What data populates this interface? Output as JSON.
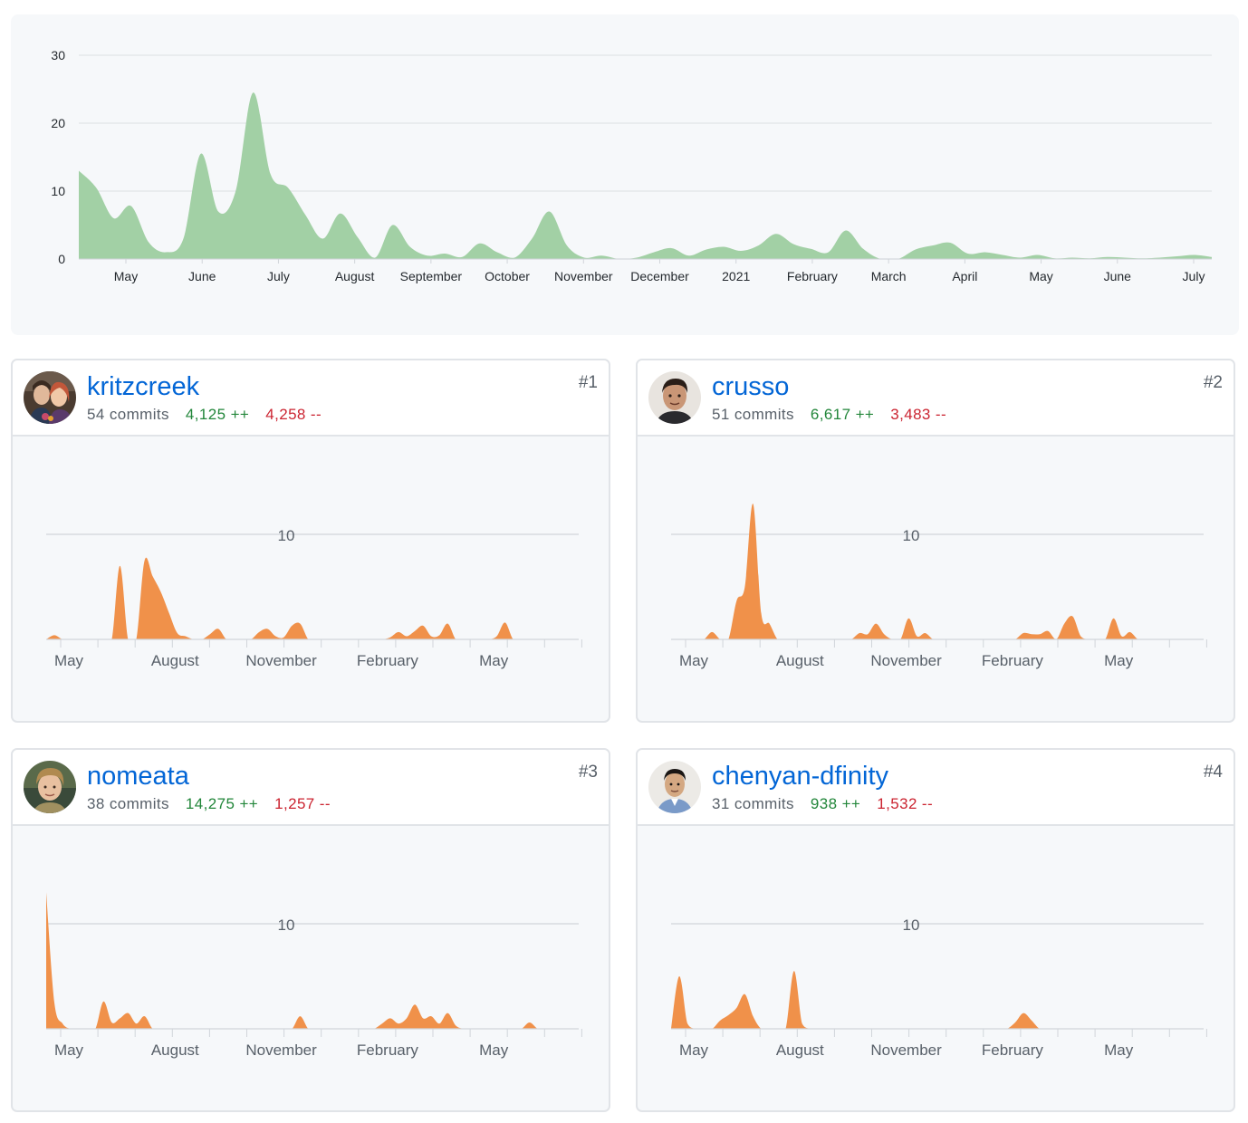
{
  "chart_data": [
    {
      "id": "overall",
      "type": "area",
      "color": "#a2d0a5",
      "y_ticks": [
        "0",
        "10",
        "20",
        "30"
      ],
      "ylim": [
        0,
        30
      ],
      "x_tick_labels": [
        "May",
        "June",
        "July",
        "August",
        "September",
        "October",
        "November",
        "December",
        "2021",
        "February",
        "March",
        "April",
        "May",
        "June",
        "July"
      ],
      "xlim": [
        0,
        65
      ],
      "x": [
        0,
        1,
        2,
        3,
        4,
        5,
        6,
        7,
        8,
        9,
        10,
        11,
        12,
        13,
        14,
        15,
        16,
        17,
        18,
        19,
        20,
        21,
        22,
        23,
        24,
        25,
        26,
        27,
        28,
        29,
        30,
        31,
        32,
        33,
        34,
        35,
        36,
        37,
        38,
        39,
        40,
        41,
        42,
        43,
        44,
        45,
        46,
        47,
        48,
        49,
        50,
        51,
        52,
        53,
        54,
        55,
        56,
        57,
        58,
        59,
        60,
        61,
        62,
        63,
        64,
        65
      ],
      "y": [
        13,
        10.5,
        6,
        7.8,
        2.5,
        1,
        3,
        15.5,
        7,
        10,
        24.5,
        12.5,
        10.5,
        6.5,
        3,
        6.7,
        3.2,
        0.2,
        5,
        1.8,
        0.5,
        0.8,
        0.3,
        2.3,
        1,
        0.2,
        3,
        7,
        2,
        0.2,
        0.5,
        0,
        0.2,
        1,
        1.6,
        0.5,
        1.4,
        1.8,
        1.2,
        2,
        3.7,
        2.2,
        1.5,
        1,
        4.2,
        1.5,
        0,
        0,
        1.4,
        2,
        2.4,
        0.8,
        1,
        0.6,
        0.2,
        0.6,
        0.1,
        0.2,
        0.1,
        0.3,
        0.2,
        0.1,
        0.2,
        0.4,
        0.6,
        0.3
      ]
    },
    {
      "id": "c1",
      "type": "area",
      "color": "#f0914a",
      "grid_label": "10",
      "x_tick_labels": [
        "May",
        "August",
        "November",
        "February",
        "May"
      ],
      "xlim": [
        0,
        65
      ],
      "ymax": 13,
      "x": [
        0,
        1,
        2,
        3,
        4,
        5,
        6,
        7,
        8,
        9,
        10,
        11,
        12,
        13,
        14,
        15,
        16,
        17,
        18,
        19,
        20,
        21,
        22,
        23,
        24,
        25,
        26,
        27,
        28,
        29,
        30,
        31,
        32,
        33,
        34,
        35,
        36,
        37,
        38,
        39,
        40,
        41,
        42,
        43,
        44,
        45,
        46,
        47,
        48,
        49,
        50,
        51,
        52,
        53,
        54,
        55,
        56,
        57,
        58,
        59,
        60,
        61,
        62,
        63,
        64,
        65
      ],
      "y": [
        0,
        0.4,
        0,
        0,
        0,
        0,
        0,
        0,
        0,
        7,
        0,
        0,
        7.5,
        6,
        4.5,
        2.5,
        0.6,
        0.3,
        0,
        0,
        0.5,
        1,
        0,
        0,
        0,
        0,
        0.7,
        1,
        0.3,
        0.2,
        1.3,
        1.5,
        0,
        0,
        0,
        0,
        0,
        0,
        0,
        0,
        0,
        0,
        0.2,
        0.7,
        0.3,
        0.8,
        1.3,
        0.3,
        0.4,
        1.5,
        0,
        0,
        0,
        0,
        0,
        0.3,
        1.6,
        0,
        0,
        0,
        0,
        0,
        0,
        0,
        0,
        0
      ]
    },
    {
      "id": "c2",
      "type": "area",
      "color": "#f0914a",
      "grid_label": "10",
      "x_tick_labels": [
        "May",
        "August",
        "November",
        "February",
        "May"
      ],
      "xlim": [
        0,
        65
      ],
      "ymax": 13,
      "x": [
        0,
        1,
        2,
        3,
        4,
        5,
        6,
        7,
        8,
        9,
        10,
        11,
        12,
        13,
        14,
        15,
        16,
        17,
        18,
        19,
        20,
        21,
        22,
        23,
        24,
        25,
        26,
        27,
        28,
        29,
        30,
        31,
        32,
        33,
        34,
        35,
        36,
        37,
        38,
        39,
        40,
        41,
        42,
        43,
        44,
        45,
        46,
        47,
        48,
        49,
        50,
        51,
        52,
        53,
        54,
        55,
        56,
        57,
        58,
        59,
        60,
        61,
        62,
        63,
        64,
        65
      ],
      "y": [
        0,
        0,
        0,
        0,
        0,
        0.7,
        0,
        0,
        3.7,
        5,
        12.9,
        2.5,
        1.5,
        0,
        0,
        0,
        0,
        0,
        0,
        0,
        0,
        0,
        0,
        0.6,
        0.5,
        1.5,
        0.5,
        0,
        0,
        2,
        0.3,
        0.6,
        0,
        0,
        0,
        0,
        0,
        0,
        0,
        0,
        0,
        0,
        0,
        0.6,
        0.5,
        0.5,
        0.8,
        0,
        1.5,
        2.2,
        0.3,
        0,
        0,
        0,
        2,
        0.3,
        0.7,
        0,
        0,
        0,
        0,
        0,
        0,
        0,
        0,
        0
      ]
    },
    {
      "id": "c3",
      "type": "area",
      "color": "#f0914a",
      "grid_label": "10",
      "x_tick_labels": [
        "May",
        "August",
        "November",
        "February",
        "May"
      ],
      "xlim": [
        0,
        65
      ],
      "ymax": 13,
      "x": [
        0,
        1,
        2,
        3,
        4,
        5,
        6,
        7,
        8,
        9,
        10,
        11,
        12,
        13,
        14,
        15,
        16,
        17,
        18,
        19,
        20,
        21,
        22,
        23,
        24,
        25,
        26,
        27,
        28,
        29,
        30,
        31,
        32,
        33,
        34,
        35,
        36,
        37,
        38,
        39,
        40,
        41,
        42,
        43,
        44,
        45,
        46,
        47,
        48,
        49,
        50,
        51,
        52,
        53,
        54,
        55,
        56,
        57,
        58,
        59,
        60,
        61,
        62,
        63,
        64,
        65
      ],
      "y": [
        13,
        2.5,
        0.5,
        0,
        0,
        0,
        0,
        2.6,
        0.6,
        1,
        1.5,
        0.5,
        1.2,
        0,
        0,
        0,
        0,
        0,
        0,
        0,
        0,
        0,
        0,
        0,
        0,
        0,
        0,
        0,
        0,
        0,
        0,
        1.2,
        0,
        0,
        0,
        0,
        0,
        0,
        0,
        0,
        0,
        0.5,
        1,
        0.5,
        1,
        2.3,
        1,
        1.2,
        0.5,
        1.5,
        0.3,
        0,
        0,
        0,
        0,
        0,
        0,
        0,
        0,
        0.6,
        0,
        0,
        0,
        0,
        0,
        0
      ]
    },
    {
      "id": "c4",
      "type": "area",
      "color": "#f0914a",
      "grid_label": "10",
      "x_tick_labels": [
        "May",
        "August",
        "November",
        "February",
        "May"
      ],
      "xlim": [
        0,
        65
      ],
      "ymax": 13,
      "x": [
        0,
        1,
        2,
        3,
        4,
        5,
        6,
        7,
        8,
        9,
        10,
        11,
        12,
        13,
        14,
        15,
        16,
        17,
        18,
        19,
        20,
        21,
        22,
        23,
        24,
        25,
        26,
        27,
        28,
        29,
        30,
        31,
        32,
        33,
        34,
        35,
        36,
        37,
        38,
        39,
        40,
        41,
        42,
        43,
        44,
        45,
        46,
        47,
        48,
        49,
        50,
        51,
        52,
        53,
        54,
        55,
        56,
        57,
        58,
        59,
        60,
        61,
        62,
        63,
        64,
        65
      ],
      "y": [
        0,
        5,
        0.5,
        0,
        0,
        0,
        0.8,
        1.3,
        2,
        3.3,
        1.2,
        0,
        0,
        0,
        0,
        5.5,
        0.5,
        0,
        0,
        0,
        0,
        0,
        0,
        0,
        0,
        0,
        0,
        0,
        0,
        0,
        0,
        0,
        0,
        0,
        0,
        0,
        0,
        0,
        0,
        0,
        0,
        0,
        0.6,
        1.5,
        0.8,
        0,
        0,
        0,
        0,
        0,
        0,
        0,
        0,
        0,
        0,
        0,
        0,
        0,
        0,
        0,
        0,
        0,
        0,
        0,
        0,
        0
      ]
    }
  ],
  "contributors": [
    {
      "rank": "#1",
      "username": "kritzcreek",
      "commits": "54 commits",
      "additions": "4,125 ++",
      "deletions": "4,258 --",
      "avatar_icon": "couple-photo-avatar"
    },
    {
      "rank": "#2",
      "username": "crusso",
      "commits": "51 commits",
      "additions": "6,617 ++",
      "deletions": "3,483 --",
      "avatar_icon": "man-photo-avatar"
    },
    {
      "rank": "#3",
      "username": "nomeata",
      "commits": "38 commits",
      "additions": "14,275 ++",
      "deletions": "1,257 --",
      "avatar_icon": "man-photo-avatar"
    },
    {
      "rank": "#4",
      "username": "chenyan-dfinity",
      "commits": "31 commits",
      "additions": "938 ++",
      "deletions": "1,532 --",
      "avatar_icon": "man-photo-avatar"
    }
  ]
}
